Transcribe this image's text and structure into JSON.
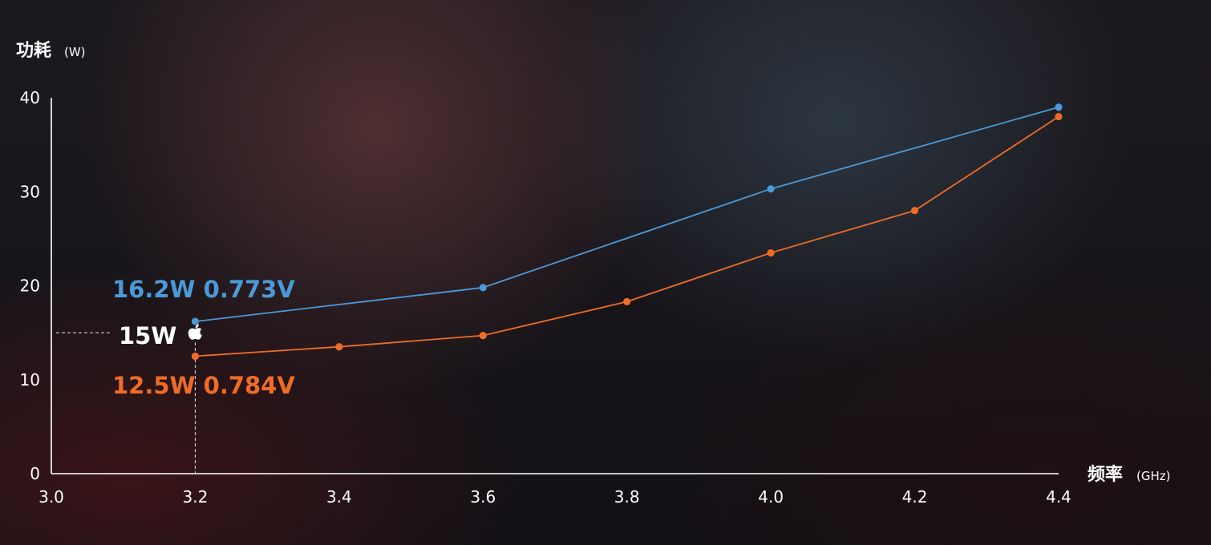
{
  "chart_data": {
    "type": "line",
    "ylabel": "功耗",
    "yunit": "(W)",
    "xlabel": "频率",
    "xunit": "(GHz)",
    "xlim": [
      3.0,
      4.4
    ],
    "ylim": [
      0,
      40
    ],
    "x_ticks": [
      "3.0",
      "3.2",
      "3.4",
      "3.6",
      "3.8",
      "4.0",
      "4.2",
      "4.4"
    ],
    "y_ticks": [
      "0",
      "10",
      "20",
      "30",
      "40"
    ],
    "grid": false,
    "series": [
      {
        "color": "#4a9ad8",
        "points": [
          {
            "x": 3.2,
            "y": 16.2
          },
          {
            "x": 3.6,
            "y": 19.8
          },
          {
            "x": 4.0,
            "y": 30.3
          },
          {
            "x": 4.4,
            "y": 39.0
          }
        ]
      },
      {
        "color": "#ee6c26",
        "points": [
          {
            "x": 3.2,
            "y": 12.5
          },
          {
            "x": 3.4,
            "y": 13.5
          },
          {
            "x": 3.6,
            "y": 14.7
          },
          {
            "x": 3.8,
            "y": 18.3
          },
          {
            "x": 4.0,
            "y": 23.5
          },
          {
            "x": 4.2,
            "y": 28.0
          },
          {
            "x": 4.4,
            "y": 38.0
          }
        ]
      }
    ],
    "annotations": {
      "upper": {
        "text": "16.2W 0.773V",
        "color": "#4a9ad8"
      },
      "lower": {
        "text": "12.5W 0.784V",
        "color": "#ee6c26"
      },
      "reference": {
        "text": "15W",
        "color": "#ffffff",
        "x": 3.2,
        "y": 15
      },
      "marker_icon": "apple-logo-icon"
    }
  }
}
